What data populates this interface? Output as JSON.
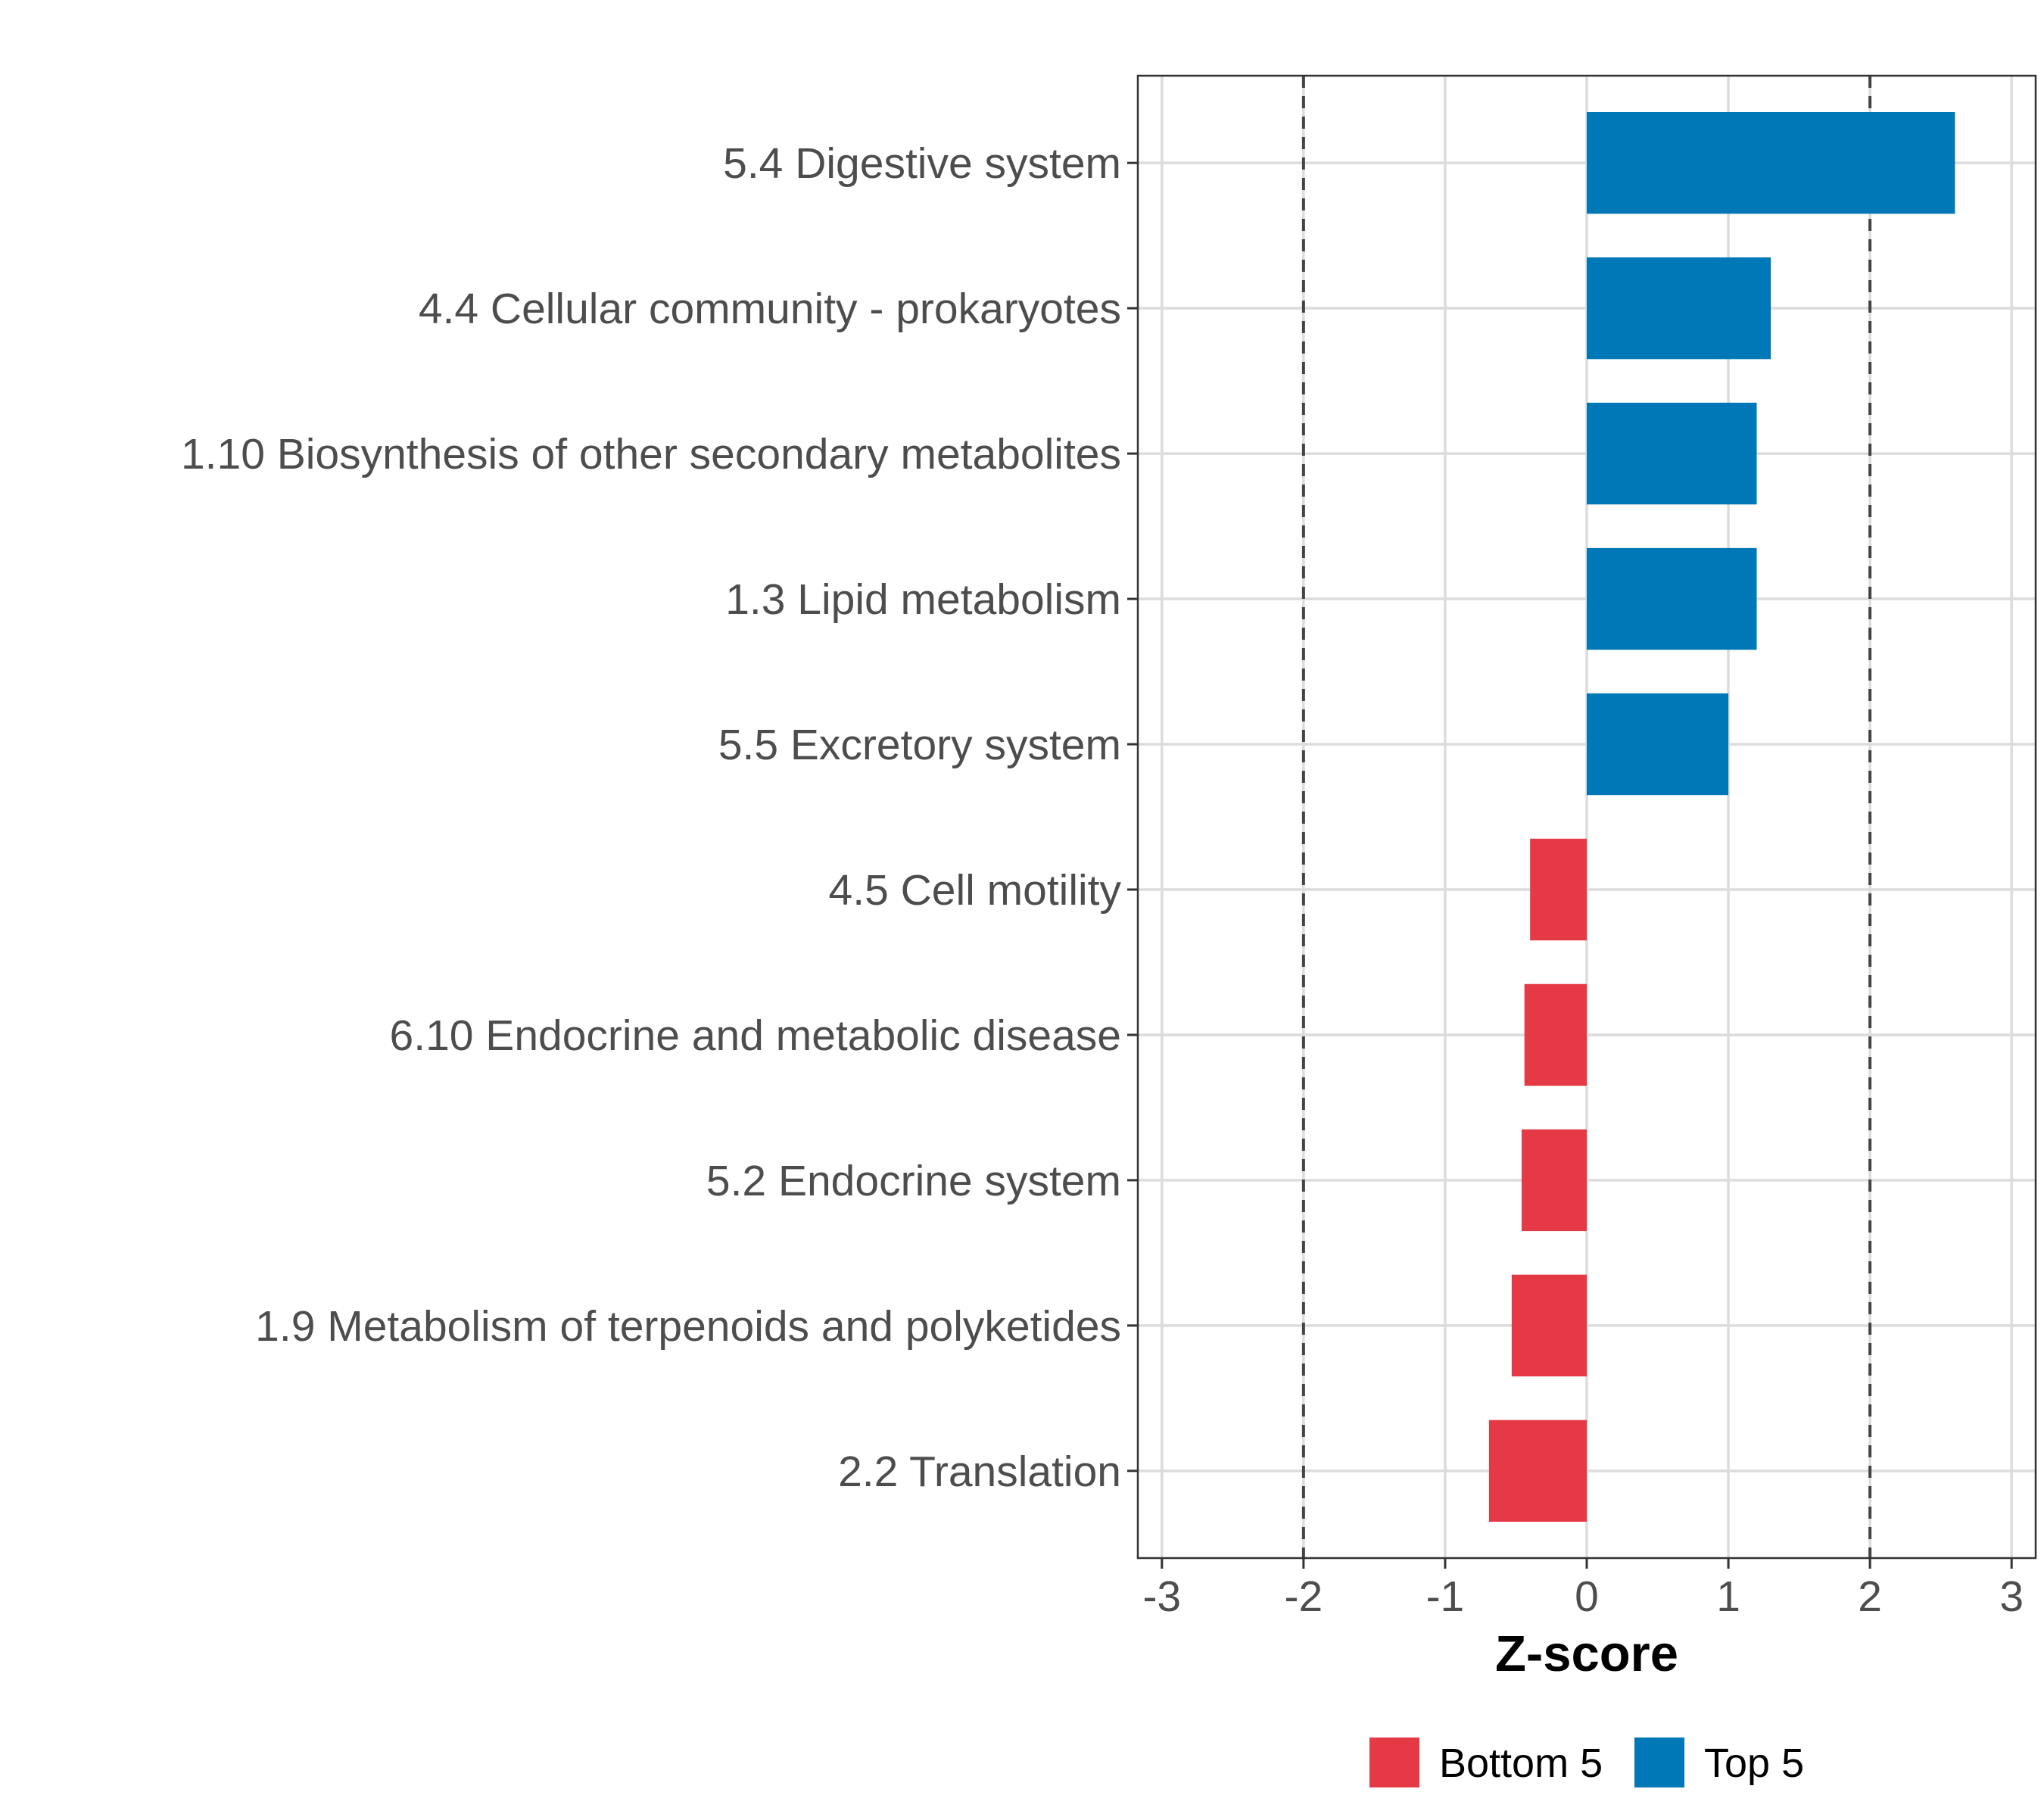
{
  "chart_data": {
    "type": "bar",
    "orientation": "horizontal",
    "title": "",
    "xlabel": "Z-score",
    "ylabel": "",
    "xlim": [
      -3.17,
      3.17
    ],
    "xticks": [
      -3,
      -2,
      -1,
      0,
      1,
      2,
      3
    ],
    "xtick_labels": [
      "-3",
      "-2",
      "-1",
      "0",
      "1",
      "2",
      "3"
    ],
    "reference_lines": [
      -2,
      2
    ],
    "grid": true,
    "categories": [
      "5.4 Digestive system",
      "4.4 Cellular community - prokaryotes",
      "1.10 Biosynthesis of other secondary metabolites",
      "1.3 Lipid metabolism",
      "5.5 Excretory system",
      "4.5 Cell motility",
      "6.10 Endocrine and metabolic disease",
      "5.2 Endocrine system",
      "1.9 Metabolism of terpenoids and polyketides",
      "2.2 Translation"
    ],
    "values": [
      2.6,
      1.3,
      1.2,
      1.2,
      1.0,
      -0.4,
      -0.44,
      -0.46,
      -0.53,
      -0.69
    ],
    "groups": [
      "Top 5",
      "Top 5",
      "Top 5",
      "Top 5",
      "Top 5",
      "Bottom 5",
      "Bottom 5",
      "Bottom 5",
      "Bottom 5",
      "Bottom 5"
    ],
    "legend": [
      {
        "name": "Bottom 5",
        "color": "#e63946"
      },
      {
        "name": "Top 5",
        "color": "#0077b6"
      }
    ],
    "legend_position": "bottom"
  }
}
